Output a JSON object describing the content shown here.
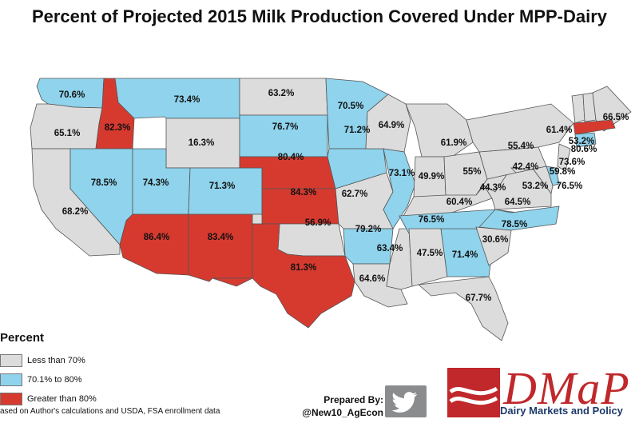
{
  "title": "Percent of Projected 2015 Milk Production Covered Under MPP-Dairy",
  "legend": {
    "title": "Percent",
    "items": [
      {
        "label": "Less than 70%",
        "color": "#dcdcdc"
      },
      {
        "label": "70.1% to 80%",
        "color": "#8fd3ec"
      },
      {
        "label": "Greater than 80%",
        "color": "#d63a2f"
      }
    ]
  },
  "source": "ased on Author's calculations and USDA, FSA enrollment data",
  "prepared_by": {
    "label": "Prepared By:",
    "handle": "@New10_AgEcon"
  },
  "logo": {
    "wordmark": "DMaP",
    "subtitle": "Dairy Markets and Policy",
    "color": "#c0282b"
  },
  "icons": {
    "twitter": "twitter-bird-icon"
  },
  "states": [
    {
      "code": "WA",
      "value": "70.6%",
      "category": "mid"
    },
    {
      "code": "OR",
      "value": "65.1%",
      "category": "low"
    },
    {
      "code": "CA",
      "value": "68.2%",
      "category": "low"
    },
    {
      "code": "ID",
      "value": "82.3%",
      "category": "high"
    },
    {
      "code": "NV",
      "value": "78.5%",
      "category": "mid"
    },
    {
      "code": "MT",
      "value": "73.4%",
      "category": "mid"
    },
    {
      "code": "WY",
      "value": "16.3%",
      "category": "low"
    },
    {
      "code": "UT",
      "value": "74.3%",
      "category": "mid"
    },
    {
      "code": "AZ",
      "value": "86.4%",
      "category": "high"
    },
    {
      "code": "CO",
      "value": "71.3%",
      "category": "mid"
    },
    {
      "code": "NM",
      "value": "83.4%",
      "category": "high"
    },
    {
      "code": "ND",
      "value": "63.2%",
      "category": "low"
    },
    {
      "code": "SD",
      "value": "76.7%",
      "category": "mid"
    },
    {
      "code": "NE",
      "value": "80.4%",
      "category": "high"
    },
    {
      "code": "KS",
      "value": "84.3%",
      "category": "high"
    },
    {
      "code": "OK",
      "value": "56.9%",
      "category": "low"
    },
    {
      "code": "TX",
      "value": "81.3%",
      "category": "high"
    },
    {
      "code": "MN",
      "value": "70.5%",
      "category": "mid"
    },
    {
      "code": "IA",
      "value": "71.2%",
      "category": "mid"
    },
    {
      "code": "MO",
      "value": "62.7%",
      "category": "low"
    },
    {
      "code": "AR",
      "value": "79.2%",
      "category": "mid"
    },
    {
      "code": "LA",
      "value": "64.6%",
      "category": "low"
    },
    {
      "code": "WI",
      "value": "64.9%",
      "category": "low"
    },
    {
      "code": "IL",
      "value": "73.1%",
      "category": "mid"
    },
    {
      "code": "MS",
      "value": "63.4%",
      "category": "low"
    },
    {
      "code": "MI",
      "value": "61.9%",
      "category": "low"
    },
    {
      "code": "IN",
      "value": "49.9%",
      "category": "low"
    },
    {
      "code": "KY",
      "value": "60.4%",
      "category": "low"
    },
    {
      "code": "TN",
      "value": "76.5%",
      "category": "mid"
    },
    {
      "code": "AL",
      "value": "47.5%",
      "category": "low"
    },
    {
      "code": "OH",
      "value": "55%",
      "category": "low"
    },
    {
      "code": "GA",
      "value": "71.4%",
      "category": "mid"
    },
    {
      "code": "FL",
      "value": "67.7%",
      "category": "low"
    },
    {
      "code": "SC",
      "value": "30.6%",
      "category": "low"
    },
    {
      "code": "NC",
      "value": "78.5%",
      "category": "mid"
    },
    {
      "code": "VA",
      "value": "64.5%",
      "category": "low"
    },
    {
      "code": "WV",
      "value": "44.3%",
      "category": "low"
    },
    {
      "code": "PA",
      "value": "42.4%",
      "category": "low"
    },
    {
      "code": "NY",
      "value": "55.4%",
      "category": "low"
    },
    {
      "code": "MD",
      "value": "53.2%",
      "category": "low"
    },
    {
      "code": "DE",
      "value": "76.5%",
      "category": "mid"
    },
    {
      "code": "NJ",
      "value": "59.8%",
      "category": "low"
    },
    {
      "code": "VT",
      "value": "61.4%",
      "category": "low"
    },
    {
      "code": "NH",
      "value": "53.2%",
      "category": "low"
    },
    {
      "code": "ME",
      "value": "66.5%",
      "category": "low"
    },
    {
      "code": "MA",
      "value": "80.6%",
      "category": "high"
    },
    {
      "code": "CT",
      "value": "73.6%",
      "category": "mid"
    }
  ]
}
